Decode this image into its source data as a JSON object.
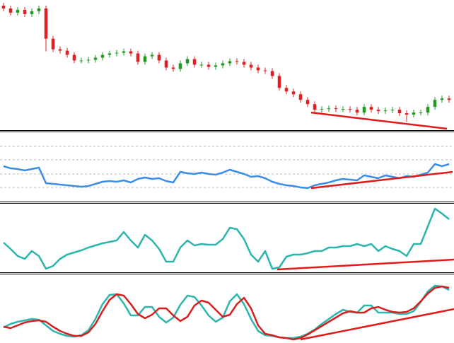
{
  "chart_data": [
    {
      "type": "candlestick",
      "xlim": [
        -0.5,
        63.7
      ],
      "ylim": [
        0,
        185
      ],
      "up_color": "#1f9a1f",
      "down_color": "#e02020",
      "open": [
        177,
        173,
        167,
        171,
        165,
        169,
        173,
        130,
        115,
        113,
        107,
        99,
        99,
        100,
        103,
        107,
        109,
        110,
        112,
        109,
        97,
        105,
        107,
        99,
        89,
        87,
        95,
        101,
        93,
        93,
        90,
        92,
        95,
        98,
        97,
        93,
        89,
        85,
        84,
        77,
        60,
        55,
        51,
        43,
        37,
        29,
        30,
        31,
        30,
        30,
        29,
        25,
        33,
        29,
        27,
        28,
        29,
        24,
        22,
        25,
        25,
        33,
        43,
        45
      ],
      "high": [
        181,
        177,
        175,
        175,
        173,
        177,
        177,
        134,
        119,
        117,
        111,
        103,
        104,
        107,
        111,
        113,
        114,
        116,
        116,
        113,
        109,
        111,
        111,
        103,
        93,
        99,
        105,
        105,
        97,
        97,
        96,
        99,
        102,
        102,
        101,
        97,
        93,
        89,
        88,
        81,
        64,
        59,
        55,
        47,
        41,
        34,
        35,
        35,
        34,
        34,
        33,
        37,
        37,
        33,
        32,
        33,
        33,
        28,
        29,
        29,
        37,
        47,
        49,
        49
      ],
      "low": [
        169,
        163,
        163,
        161,
        161,
        165,
        112,
        111,
        109,
        103,
        95,
        95,
        95,
        96,
        99,
        103,
        105,
        106,
        105,
        93,
        93,
        101,
        95,
        85,
        83,
        83,
        91,
        89,
        89,
        86,
        86,
        88,
        91,
        93,
        89,
        85,
        81,
        80,
        73,
        56,
        51,
        47,
        39,
        33,
        25,
        25,
        26,
        26,
        26,
        25,
        21,
        21,
        25,
        23,
        23,
        24,
        20,
        12,
        18,
        21,
        21,
        29,
        39,
        39
      ],
      "close": [
        173,
        167,
        171,
        165,
        169,
        173,
        130,
        115,
        113,
        107,
        99,
        99,
        100,
        103,
        107,
        109,
        110,
        112,
        109,
        97,
        105,
        107,
        99,
        89,
        87,
        95,
        101,
        93,
        93,
        90,
        92,
        95,
        98,
        97,
        93,
        89,
        85,
        84,
        77,
        60,
        55,
        51,
        43,
        37,
        29,
        30,
        31,
        30,
        30,
        29,
        25,
        33,
        29,
        27,
        28,
        29,
        24,
        22,
        25,
        25,
        33,
        43,
        45,
        43
      ],
      "trendline": {
        "x": [
          43.5,
          62.7
        ],
        "y": [
          25,
          2
        ],
        "color": "#e31a1a"
      }
    },
    {
      "type": "line",
      "xlim": [
        -0.5,
        63.7
      ],
      "ylim": [
        0,
        97
      ],
      "levels": [
        78,
        59,
        39,
        20
      ],
      "series": [
        {
          "color": "#3b8ee8",
          "values": [
            50,
            47,
            46,
            44,
            46,
            48,
            26,
            25,
            24,
            23,
            22,
            21,
            22,
            25,
            28,
            29,
            28,
            30,
            27,
            32,
            34,
            32,
            33,
            29,
            27,
            42,
            40,
            39,
            41,
            39,
            38,
            41,
            45,
            42,
            39,
            35,
            36,
            33,
            28,
            25,
            23,
            22,
            20,
            19,
            23,
            25,
            27,
            30,
            32,
            31,
            30,
            37,
            35,
            33,
            37,
            35,
            33,
            36,
            35,
            38,
            41,
            53,
            50,
            53
          ]
        }
      ],
      "trendline": {
        "x": [
          43.5,
          63.5
        ],
        "y": [
          19,
          42
        ],
        "color": "#e31a1a"
      }
    },
    {
      "type": "line",
      "xlim": [
        -0.5,
        63.7
      ],
      "ylim": [
        0,
        97
      ],
      "series": [
        {
          "color": "#2bb5ac",
          "values": [
            42,
            33,
            23,
            19,
            30,
            23,
            5,
            9,
            19,
            25,
            28,
            31,
            35,
            38,
            41,
            43,
            45,
            57,
            45,
            35,
            53,
            45,
            33,
            15,
            15,
            35,
            45,
            38,
            40,
            39,
            39,
            47,
            63,
            61,
            47,
            25,
            15,
            30,
            5,
            7,
            22,
            25,
            25,
            27,
            30,
            30,
            35,
            35,
            37,
            37,
            40,
            37,
            40,
            30,
            37,
            33,
            30,
            23,
            40,
            40,
            65,
            90,
            83,
            75
          ]
        }
      ],
      "trendline": {
        "x": [
          38.7,
          63.7
        ],
        "y": [
          4,
          18
        ],
        "color": "#e31a1a"
      }
    },
    {
      "type": "line",
      "xlim": [
        -0.5,
        63.7
      ],
      "ylim": [
        0,
        96
      ],
      "series": [
        {
          "color": "#2bb5ac",
          "values": [
            22,
            27,
            30,
            32,
            34,
            33,
            25,
            17,
            13,
            10,
            9,
            11,
            18,
            34,
            55,
            68,
            69,
            56,
            39,
            39,
            51,
            51,
            37,
            29,
            36,
            54,
            67,
            65,
            53,
            39,
            30,
            36,
            59,
            69,
            55,
            34,
            17,
            11,
            10,
            8,
            7,
            7,
            9,
            13,
            19,
            27,
            34,
            41,
            47,
            44,
            43,
            53,
            53,
            43,
            43,
            43,
            41,
            41,
            45,
            58,
            73,
            81,
            80,
            75
          ]
        },
        {
          "color": "#d62020",
          "values": [
            23,
            21,
            25,
            29,
            31,
            32,
            30,
            23,
            17,
            13,
            10,
            10,
            15,
            27,
            45,
            61,
            69,
            67,
            55,
            41,
            35,
            40,
            49,
            49,
            39,
            31,
            37,
            53,
            60,
            57,
            47,
            37,
            40,
            55,
            64,
            49,
            25,
            13,
            11,
            8,
            7,
            5,
            7,
            12,
            18,
            24,
            30,
            36,
            42,
            45,
            43,
            43,
            49,
            51,
            47,
            44,
            43,
            44,
            49,
            59,
            70,
            78,
            80,
            78
          ]
        }
      ],
      "trendline": {
        "x": [
          42,
          63.7
        ],
        "y": [
          5,
          48
        ],
        "color": "#e31a1a"
      }
    }
  ]
}
